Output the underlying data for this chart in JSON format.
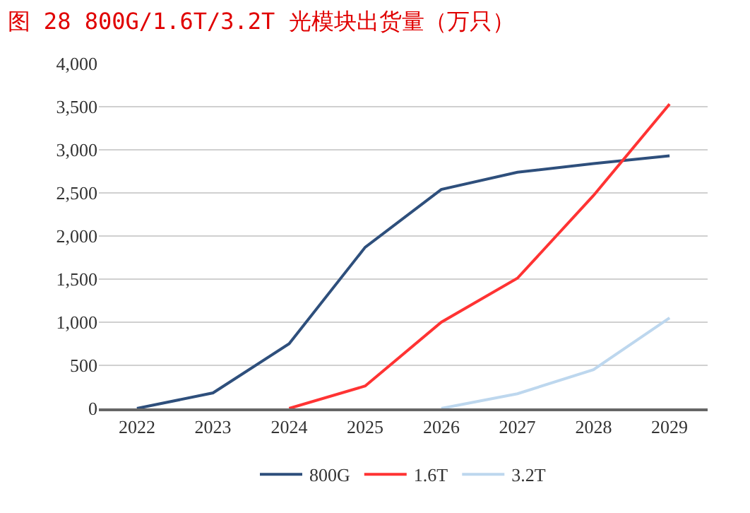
{
  "chart_data": {
    "type": "line",
    "title": "图 28 800G/1.6T/3.2T 光模块出货量（万只）",
    "categories": [
      "2022",
      "2023",
      "2024",
      "2025",
      "2026",
      "2027",
      "2028",
      "2029"
    ],
    "series": [
      {
        "name": "800G",
        "color": "#2e4f7c",
        "values": [
          0,
          180,
          750,
          1870,
          2540,
          2740,
          2840,
          2930
        ]
      },
      {
        "name": "1.6T",
        "color": "#ff3333",
        "values": [
          null,
          null,
          0,
          260,
          1000,
          1510,
          2470,
          3530
        ]
      },
      {
        "name": "3.2T",
        "color": "#bdd7ee",
        "values": [
          null,
          null,
          null,
          null,
          0,
          170,
          450,
          1050
        ]
      }
    ],
    "ylim": [
      0,
      4000
    ],
    "yticks": [
      {
        "value": 0,
        "label": "0"
      },
      {
        "value": 500,
        "label": "500"
      },
      {
        "value": 1000,
        "label": "1,000"
      },
      {
        "value": 1500,
        "label": "1,500"
      },
      {
        "value": 2000,
        "label": "2,000"
      },
      {
        "value": 2500,
        "label": "2,500"
      },
      {
        "value": 3000,
        "label": "3,000"
      },
      {
        "value": 3500,
        "label": "3,500"
      },
      {
        "value": 4000,
        "label": "4,000"
      }
    ],
    "grid": "y",
    "legend": "bottom",
    "marker": "none",
    "line_style": "solid"
  }
}
